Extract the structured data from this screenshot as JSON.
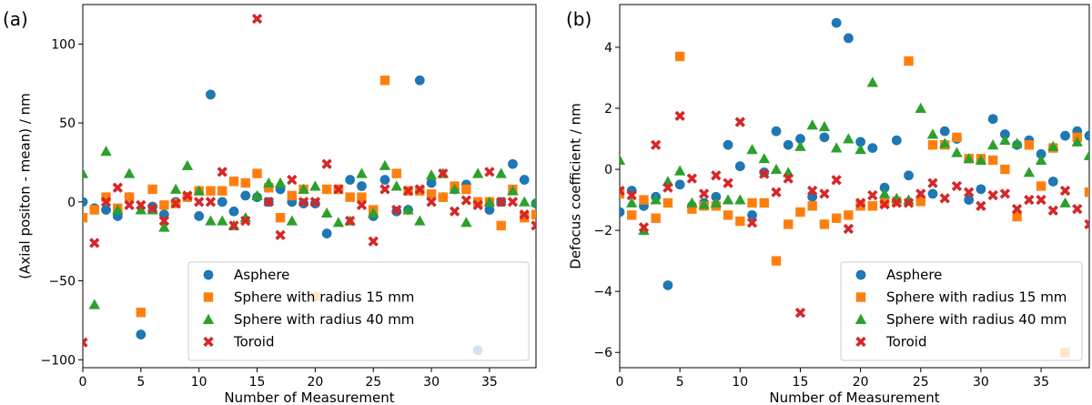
{
  "colors": {
    "asphere": "#1f77b4",
    "sphere15": "#ff7f0e",
    "sphere40": "#2ca02c",
    "toroid": "#d62728"
  },
  "chart_data": [
    {
      "type": "scatter",
      "panel_label": "(a)",
      "xlabel": "Number of Measurement",
      "ylabel": "(Axial positon - mean) / nm",
      "xlim": [
        0,
        39
      ],
      "ylim": [
        -105,
        125
      ],
      "xticks": [
        0,
        5,
        10,
        15,
        20,
        25,
        30,
        35
      ],
      "yticks": [
        -100,
        -50,
        0,
        50,
        100
      ],
      "legend_position": "lower-right",
      "series": [
        {
          "name": "Asphere",
          "marker": "circle",
          "color_key": "asphere",
          "values": [
            0,
            -4,
            -5,
            -9,
            3,
            -84,
            -3,
            -8,
            0,
            3,
            -9,
            68,
            0,
            -6,
            4,
            3,
            0,
            8,
            0,
            -1,
            -1,
            -20,
            8,
            14,
            10,
            -9,
            14,
            -6,
            -5,
            77,
            12,
            3,
            8,
            11,
            -94,
            -5,
            0,
            24,
            14,
            -1
          ]
        },
        {
          "name": "Sphere with radius 15 mm",
          "marker": "square",
          "color_key": "sphere15",
          "values": [
            -10,
            -5,
            3,
            -4,
            3,
            -70,
            8,
            -2,
            -1,
            3,
            7,
            7,
            7,
            13,
            12,
            18,
            9,
            -10,
            4,
            8,
            -60,
            8,
            8,
            3,
            3,
            -5,
            77,
            18,
            7,
            7,
            5,
            3,
            10,
            8,
            0,
            0,
            -15,
            8,
            -10,
            -8
          ]
        },
        {
          "name": "Sphere with radius 40 mm",
          "marker": "triangle",
          "color_key": "sphere40",
          "values": [
            18,
            -65,
            32,
            -5,
            18,
            -5,
            -5,
            -16,
            8,
            23,
            7,
            -12,
            -12,
            -15,
            -10,
            4,
            12,
            12,
            -12,
            8,
            10,
            -7,
            -13,
            -12,
            18,
            -7,
            23,
            10,
            -5,
            -12,
            17,
            18,
            8,
            -13,
            18,
            0,
            18,
            7,
            0,
            0
          ]
        },
        {
          "name": "Toroid",
          "marker": "x",
          "color_key": "toroid",
          "values": [
            -89,
            -26,
            0,
            9,
            -2,
            -2,
            -4,
            -12,
            -1,
            4,
            0,
            0,
            19,
            -15,
            -12,
            116,
            0,
            -21,
            14,
            0,
            0,
            24,
            8,
            -12,
            -2,
            -25,
            8,
            -5,
            7,
            8,
            0,
            18,
            -6,
            1,
            -2,
            19,
            0,
            0,
            -8,
            -15
          ]
        }
      ]
    },
    {
      "type": "scatter",
      "panel_label": "(b)",
      "xlabel": "Number of Measurement",
      "ylabel": "Defocus coefficient / nm",
      "xlim": [
        0,
        39
      ],
      "ylim": [
        -6.5,
        5.4
      ],
      "xticks": [
        0,
        5,
        10,
        15,
        20,
        25,
        30,
        35
      ],
      "yticks": [
        -6,
        -4,
        -2,
        0,
        2,
        4
      ],
      "legend_position": "lower-right",
      "series": [
        {
          "name": "Asphere",
          "marker": "circle",
          "color_key": "asphere",
          "values": [
            -1.4,
            -0.7,
            -1.2,
            -0.9,
            -3.8,
            -0.5,
            -1.2,
            -1.1,
            -0.9,
            0.8,
            0.1,
            -1.5,
            -0.1,
            1.25,
            0.8,
            1.0,
            -0.9,
            1.05,
            4.8,
            4.3,
            0.9,
            0.7,
            -0.6,
            0.95,
            -0.2,
            -1.0,
            -0.8,
            1.25,
            1.0,
            -1.0,
            -0.65,
            1.65,
            1.15,
            0.8,
            0.95,
            0.5,
            -0.4,
            1.1,
            1.25,
            1.1
          ]
        },
        {
          "name": "Sphere with radius 15 mm",
          "marker": "square",
          "color_key": "sphere15",
          "values": [
            -0.8,
            -1.5,
            -1.0,
            -1.6,
            -1.1,
            3.7,
            -1.3,
            -1.2,
            -1.2,
            -1.5,
            -1.7,
            -1.1,
            -1.1,
            -3.0,
            -1.8,
            -1.4,
            -1.2,
            -1.8,
            -1.6,
            -1.5,
            -1.2,
            -1.2,
            -1.1,
            -1.05,
            3.55,
            -1.05,
            0.8,
            0.8,
            1.05,
            0.35,
            0.35,
            0.3,
            0.0,
            -1.55,
            0.8,
            -0.55,
            0.7,
            -6.0,
            1.05,
            -0.75
          ]
        },
        {
          "name": "Sphere with radius 40 mm",
          "marker": "triangle",
          "color_key": "sphere40",
          "values": [
            0.3,
            -1.1,
            -2.0,
            -1.0,
            -0.4,
            -0.05,
            -1.1,
            -1.15,
            -1.1,
            -1.0,
            -1.0,
            0.65,
            0.35,
            0.0,
            -0.1,
            0.75,
            1.45,
            1.4,
            0.7,
            1.0,
            0.65,
            2.85,
            -0.8,
            -0.95,
            -1.0,
            2.0,
            1.15,
            0.85,
            0.55,
            0.35,
            0.3,
            0.8,
            0.95,
            0.85,
            -0.1,
            0.3,
            0.75,
            -1.1,
            0.9,
            0.45
          ]
        },
        {
          "name": "Toroid",
          "marker": "x",
          "color_key": "toroid",
          "values": [
            -0.7,
            -0.85,
            -1.9,
            0.8,
            -0.6,
            1.75,
            -0.3,
            -0.8,
            -0.2,
            -0.45,
            1.55,
            -1.75,
            -0.15,
            -0.75,
            -0.3,
            -4.7,
            -0.7,
            -0.8,
            -0.35,
            -1.95,
            -1.1,
            -0.85,
            -1.15,
            -1.1,
            -1.1,
            -0.8,
            -0.45,
            -0.95,
            -0.55,
            -0.75,
            -1.2,
            -0.85,
            -0.8,
            -1.3,
            -1.0,
            -1.0,
            -1.35,
            -0.7,
            -1.3,
            -1.8
          ]
        }
      ]
    }
  ]
}
